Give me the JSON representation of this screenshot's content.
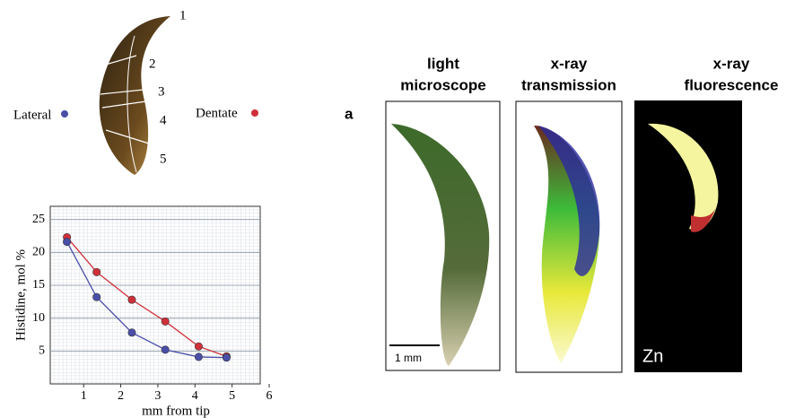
{
  "chart_data": {
    "type": "line",
    "xlabel": "mm from tip",
    "ylabel": "Histidine, mol %",
    "xlim": [
      0.1,
      6
    ],
    "xticks": [
      1,
      2,
      3,
      4,
      5,
      6
    ],
    "ylim": [
      0,
      27
    ],
    "yticks": [
      5,
      10,
      15,
      20,
      25
    ],
    "grid": true,
    "series": [
      {
        "name": "Dentate",
        "color": "#d0303a",
        "x": [
          0.55,
          1.35,
          2.3,
          3.2,
          4.1,
          4.85
        ],
        "values": [
          22.3,
          17,
          12.8,
          9.5,
          5.7,
          4.2
        ]
      },
      {
        "name": "Lateral",
        "color": "#4a4fa8",
        "x": [
          0.55,
          1.35,
          2.3,
          3.2,
          4.1,
          4.85
        ],
        "values": [
          21.6,
          13.2,
          7.8,
          5.2,
          4.1,
          4.0
        ]
      }
    ]
  },
  "jaw_diagram": {
    "positions": [
      "1",
      "2",
      "3",
      "4",
      "5"
    ]
  },
  "panel": {
    "letter": "a",
    "headers": [
      [
        "light",
        "microscope"
      ],
      [
        "x-ray",
        "transmission"
      ],
      [
        "x-ray",
        "fluorescence"
      ]
    ],
    "scale_bar": "1 mm",
    "element": "Zn"
  }
}
